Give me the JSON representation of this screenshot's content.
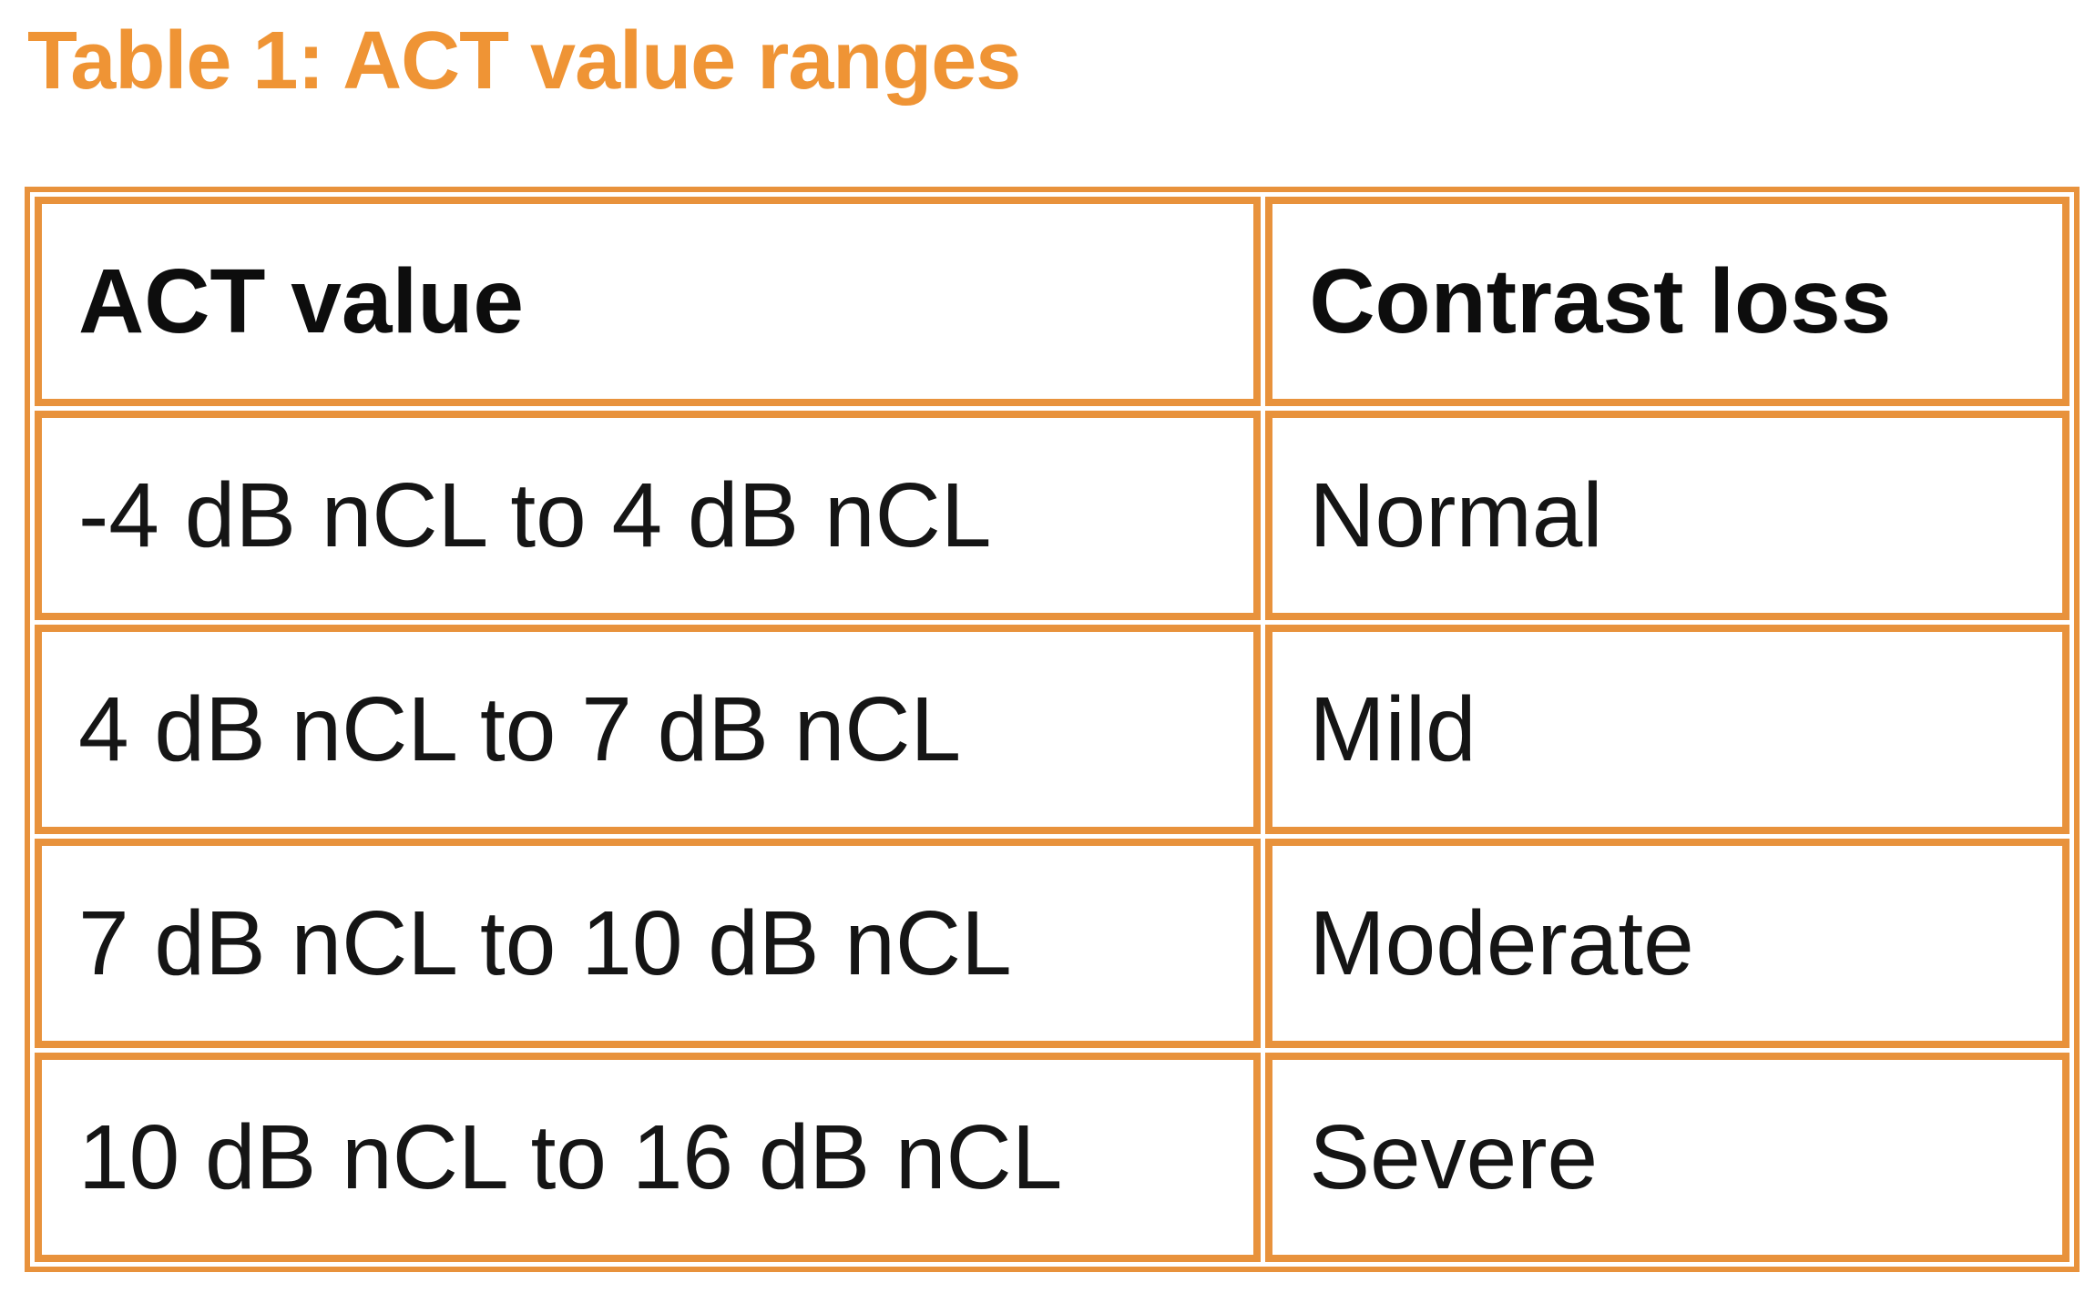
{
  "title": "Table 1: ACT value ranges",
  "colors": {
    "caption_orange": "#ef9435",
    "border_orange": "#e8923c",
    "text_black": "#151515",
    "background": "#ffffff"
  },
  "table": {
    "headers": [
      "ACT value",
      "Contrast loss"
    ],
    "rows": [
      {
        "act": "-4 dB nCL to 4 dB nCL",
        "loss": "Normal"
      },
      {
        "act": "4 dB nCL to 7 dB nCL",
        "loss": "Mild"
      },
      {
        "act": "7 dB nCL to 10 dB nCL",
        "loss": "Moderate"
      },
      {
        "act": "10 dB nCL to 16 dB nCL",
        "loss": "Severe"
      }
    ]
  },
  "chart_data": {
    "type": "table",
    "title": "Table 1: ACT value ranges",
    "columns": [
      "ACT value",
      "Contrast loss"
    ],
    "rows": [
      [
        "-4 dB nCL to 4 dB nCL",
        "Normal"
      ],
      [
        "4 dB nCL to 7 dB nCL",
        "Mild"
      ],
      [
        "7 dB nCL to 10 dB nCL",
        "Moderate"
      ],
      [
        "10 dB nCL to 16 dB nCL",
        "Severe"
      ]
    ],
    "act_ranges_db_nCL": [
      {
        "min": -4,
        "max": 4,
        "contrast_loss": "Normal"
      },
      {
        "min": 4,
        "max": 7,
        "contrast_loss": "Mild"
      },
      {
        "min": 7,
        "max": 10,
        "contrast_loss": "Moderate"
      },
      {
        "min": 10,
        "max": 16,
        "contrast_loss": "Severe"
      }
    ]
  }
}
